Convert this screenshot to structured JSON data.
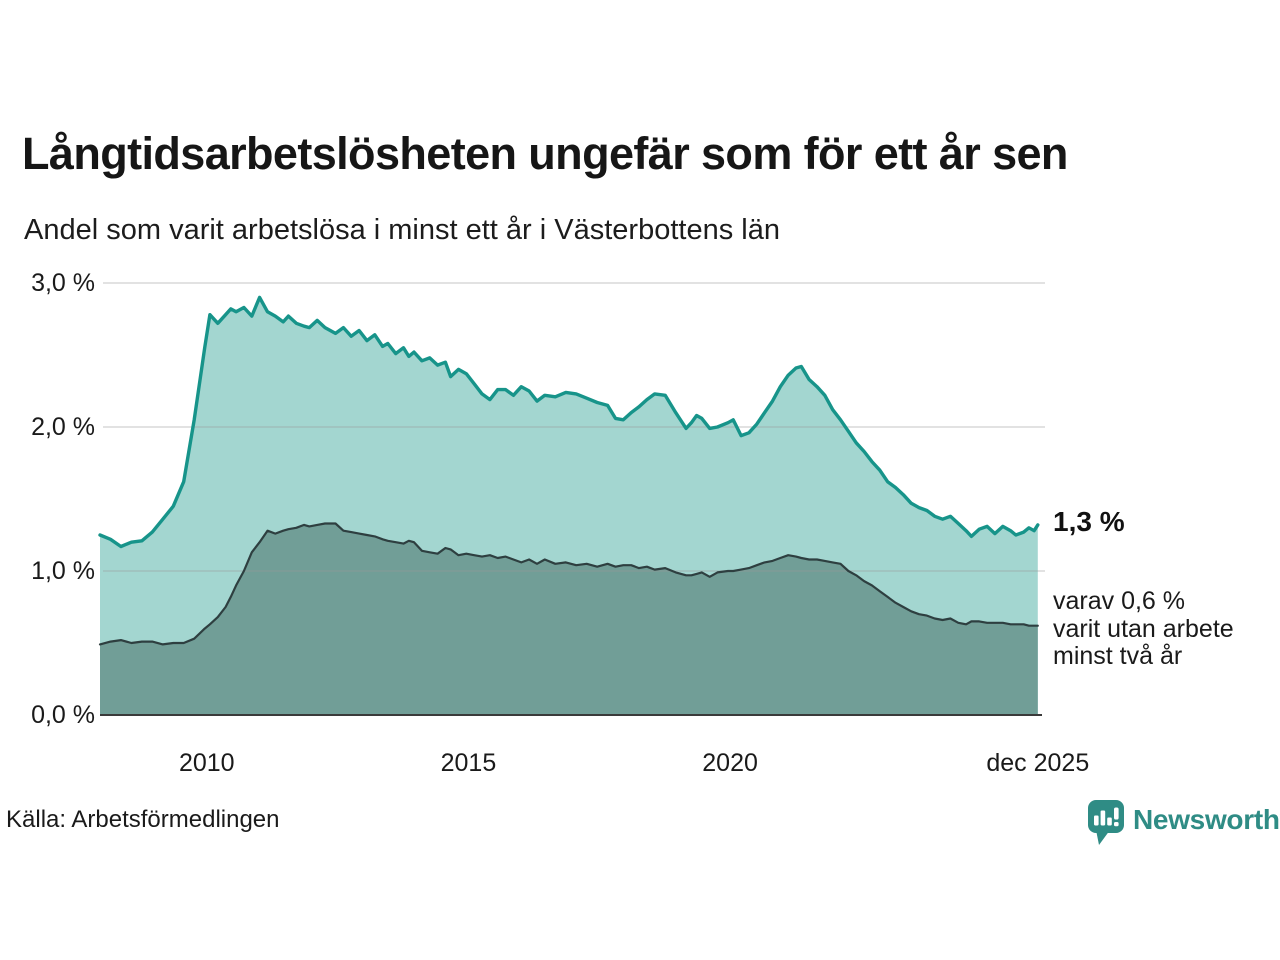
{
  "header": {
    "title": "Långtidsarbetslösheten ungefär som för ett år sen",
    "subtitle": "Andel som varit arbetslösa i minst ett år i Västerbottens län"
  },
  "chart_data": {
    "type": "area",
    "title": "Långtidsarbetslösheten ungefär som för ett år sen",
    "subtitle": "Andel som varit arbetslösa i minst ett år i Västerbottens län",
    "unit": "%",
    "grid": true,
    "legend_position": "none",
    "x_range": [
      2008.0,
      2026.0
    ],
    "ylim": [
      0,
      3.0
    ],
    "yticks": [
      {
        "v": 0,
        "label": "0,0 %"
      },
      {
        "v": 1,
        "label": "1,0 %"
      },
      {
        "v": 2,
        "label": "2,0 %"
      },
      {
        "v": 3,
        "label": "3,0 %"
      }
    ],
    "xticks": [
      {
        "v": 2010.04,
        "label": "2010"
      },
      {
        "v": 2015.04,
        "label": "2015"
      },
      {
        "v": 2020.04,
        "label": "2020"
      },
      {
        "v": 2025.92,
        "label": "dec 2025"
      }
    ],
    "x": [
      2008.0,
      2008.2,
      2008.4,
      2008.6,
      2008.8,
      2009.0,
      2009.2,
      2009.4,
      2009.6,
      2009.8,
      2010.0,
      2010.1,
      2010.25,
      2010.4,
      2010.5,
      2010.6,
      2010.75,
      2010.9,
      2011.05,
      2011.2,
      2011.35,
      2011.5,
      2011.6,
      2011.75,
      2011.9,
      2012.0,
      2012.15,
      2012.3,
      2012.5,
      2012.65,
      2012.8,
      2012.95,
      2013.1,
      2013.25,
      2013.4,
      2013.5,
      2013.65,
      2013.8,
      2013.9,
      2014.0,
      2014.15,
      2014.3,
      2014.45,
      2014.6,
      2014.7,
      2014.85,
      2015.0,
      2015.15,
      2015.3,
      2015.45,
      2015.6,
      2015.75,
      2015.9,
      2016.05,
      2016.2,
      2016.35,
      2016.5,
      2016.7,
      2016.9,
      2017.1,
      2017.3,
      2017.5,
      2017.7,
      2017.85,
      2018.0,
      2018.15,
      2018.3,
      2018.45,
      2018.6,
      2018.8,
      2019.0,
      2019.2,
      2019.3,
      2019.4,
      2019.5,
      2019.65,
      2019.8,
      2020.0,
      2020.1,
      2020.25,
      2020.4,
      2020.55,
      2020.7,
      2020.85,
      2021.0,
      2021.15,
      2021.3,
      2021.4,
      2021.55,
      2021.7,
      2021.85,
      2022.0,
      2022.15,
      2022.3,
      2022.45,
      2022.6,
      2022.75,
      2022.9,
      2023.05,
      2023.2,
      2023.35,
      2023.5,
      2023.65,
      2023.8,
      2023.95,
      2024.1,
      2024.25,
      2024.4,
      2024.55,
      2024.65,
      2024.8,
      2024.95,
      2025.1,
      2025.25,
      2025.4,
      2025.5,
      2025.65,
      2025.75,
      2025.85,
      2025.92
    ],
    "series": [
      {
        "name": "Arbetslösa minst ett år",
        "line_color": "#17948a",
        "fill_color": "#a3d6d0",
        "line_width": 3.4,
        "values": [
          1.25,
          1.22,
          1.17,
          1.2,
          1.21,
          1.27,
          1.36,
          1.45,
          1.62,
          2.05,
          2.55,
          2.78,
          2.72,
          2.78,
          2.82,
          2.8,
          2.83,
          2.77,
          2.9,
          2.8,
          2.77,
          2.73,
          2.77,
          2.72,
          2.7,
          2.69,
          2.74,
          2.69,
          2.65,
          2.69,
          2.63,
          2.67,
          2.6,
          2.64,
          2.56,
          2.58,
          2.51,
          2.55,
          2.49,
          2.52,
          2.46,
          2.48,
          2.43,
          2.45,
          2.35,
          2.4,
          2.37,
          2.3,
          2.23,
          2.19,
          2.26,
          2.26,
          2.22,
          2.28,
          2.25,
          2.18,
          2.22,
          2.21,
          2.24,
          2.23,
          2.2,
          2.17,
          2.15,
          2.06,
          2.05,
          2.1,
          2.14,
          2.19,
          2.23,
          2.22,
          2.1,
          1.99,
          2.03,
          2.08,
          2.06,
          1.99,
          2.0,
          2.03,
          2.05,
          1.94,
          1.96,
          2.02,
          2.1,
          2.18,
          2.28,
          2.36,
          2.41,
          2.42,
          2.33,
          2.28,
          2.22,
          2.12,
          2.05,
          1.97,
          1.89,
          1.83,
          1.76,
          1.7,
          1.62,
          1.58,
          1.53,
          1.47,
          1.44,
          1.42,
          1.38,
          1.36,
          1.38,
          1.33,
          1.28,
          1.24,
          1.29,
          1.31,
          1.26,
          1.31,
          1.28,
          1.25,
          1.27,
          1.3,
          1.28,
          1.32
        ]
      },
      {
        "name": "Arbetslösa minst två år",
        "line_color": "#2e3f40",
        "fill_color": "#719e97",
        "line_width": 2.2,
        "values": [
          0.49,
          0.51,
          0.52,
          0.5,
          0.51,
          0.51,
          0.49,
          0.5,
          0.5,
          0.53,
          0.6,
          0.63,
          0.68,
          0.75,
          0.82,
          0.9,
          1.0,
          1.13,
          1.2,
          1.28,
          1.26,
          1.28,
          1.29,
          1.3,
          1.32,
          1.31,
          1.32,
          1.33,
          1.33,
          1.28,
          1.27,
          1.26,
          1.25,
          1.24,
          1.22,
          1.21,
          1.2,
          1.19,
          1.21,
          1.2,
          1.14,
          1.13,
          1.12,
          1.16,
          1.15,
          1.11,
          1.12,
          1.11,
          1.1,
          1.11,
          1.09,
          1.1,
          1.08,
          1.06,
          1.08,
          1.05,
          1.08,
          1.05,
          1.06,
          1.04,
          1.05,
          1.03,
          1.05,
          1.03,
          1.04,
          1.04,
          1.02,
          1.03,
          1.01,
          1.02,
          0.99,
          0.97,
          0.97,
          0.98,
          0.99,
          0.96,
          0.99,
          1.0,
          1.0,
          1.01,
          1.02,
          1.04,
          1.06,
          1.07,
          1.09,
          1.11,
          1.1,
          1.09,
          1.08,
          1.08,
          1.07,
          1.06,
          1.05,
          1.0,
          0.97,
          0.93,
          0.9,
          0.86,
          0.82,
          0.78,
          0.75,
          0.72,
          0.7,
          0.69,
          0.67,
          0.66,
          0.67,
          0.64,
          0.63,
          0.65,
          0.65,
          0.64,
          0.64,
          0.64,
          0.63,
          0.63,
          0.63,
          0.62,
          0.62,
          0.62
        ]
      }
    ],
    "end_labels": {
      "primary": "1,3 %",
      "secondary": "varav 0,6 %\nvarit utan arbete\nminst två år"
    }
  },
  "colors": {
    "accent_teal": "#17948a",
    "light_fill": "#a3d6d0",
    "dark_line": "#2e3f40",
    "dark_fill": "#719e97",
    "gridline": "#999999",
    "axis_line": "#3a3a3a",
    "brand_teal": "#2f8c85"
  },
  "footer": {
    "source": "Källa: Arbetsförmedlingen",
    "brand": "Newsworthy"
  },
  "icons": {
    "brand_logo": "speech-bubble-bar-chart-icon"
  }
}
